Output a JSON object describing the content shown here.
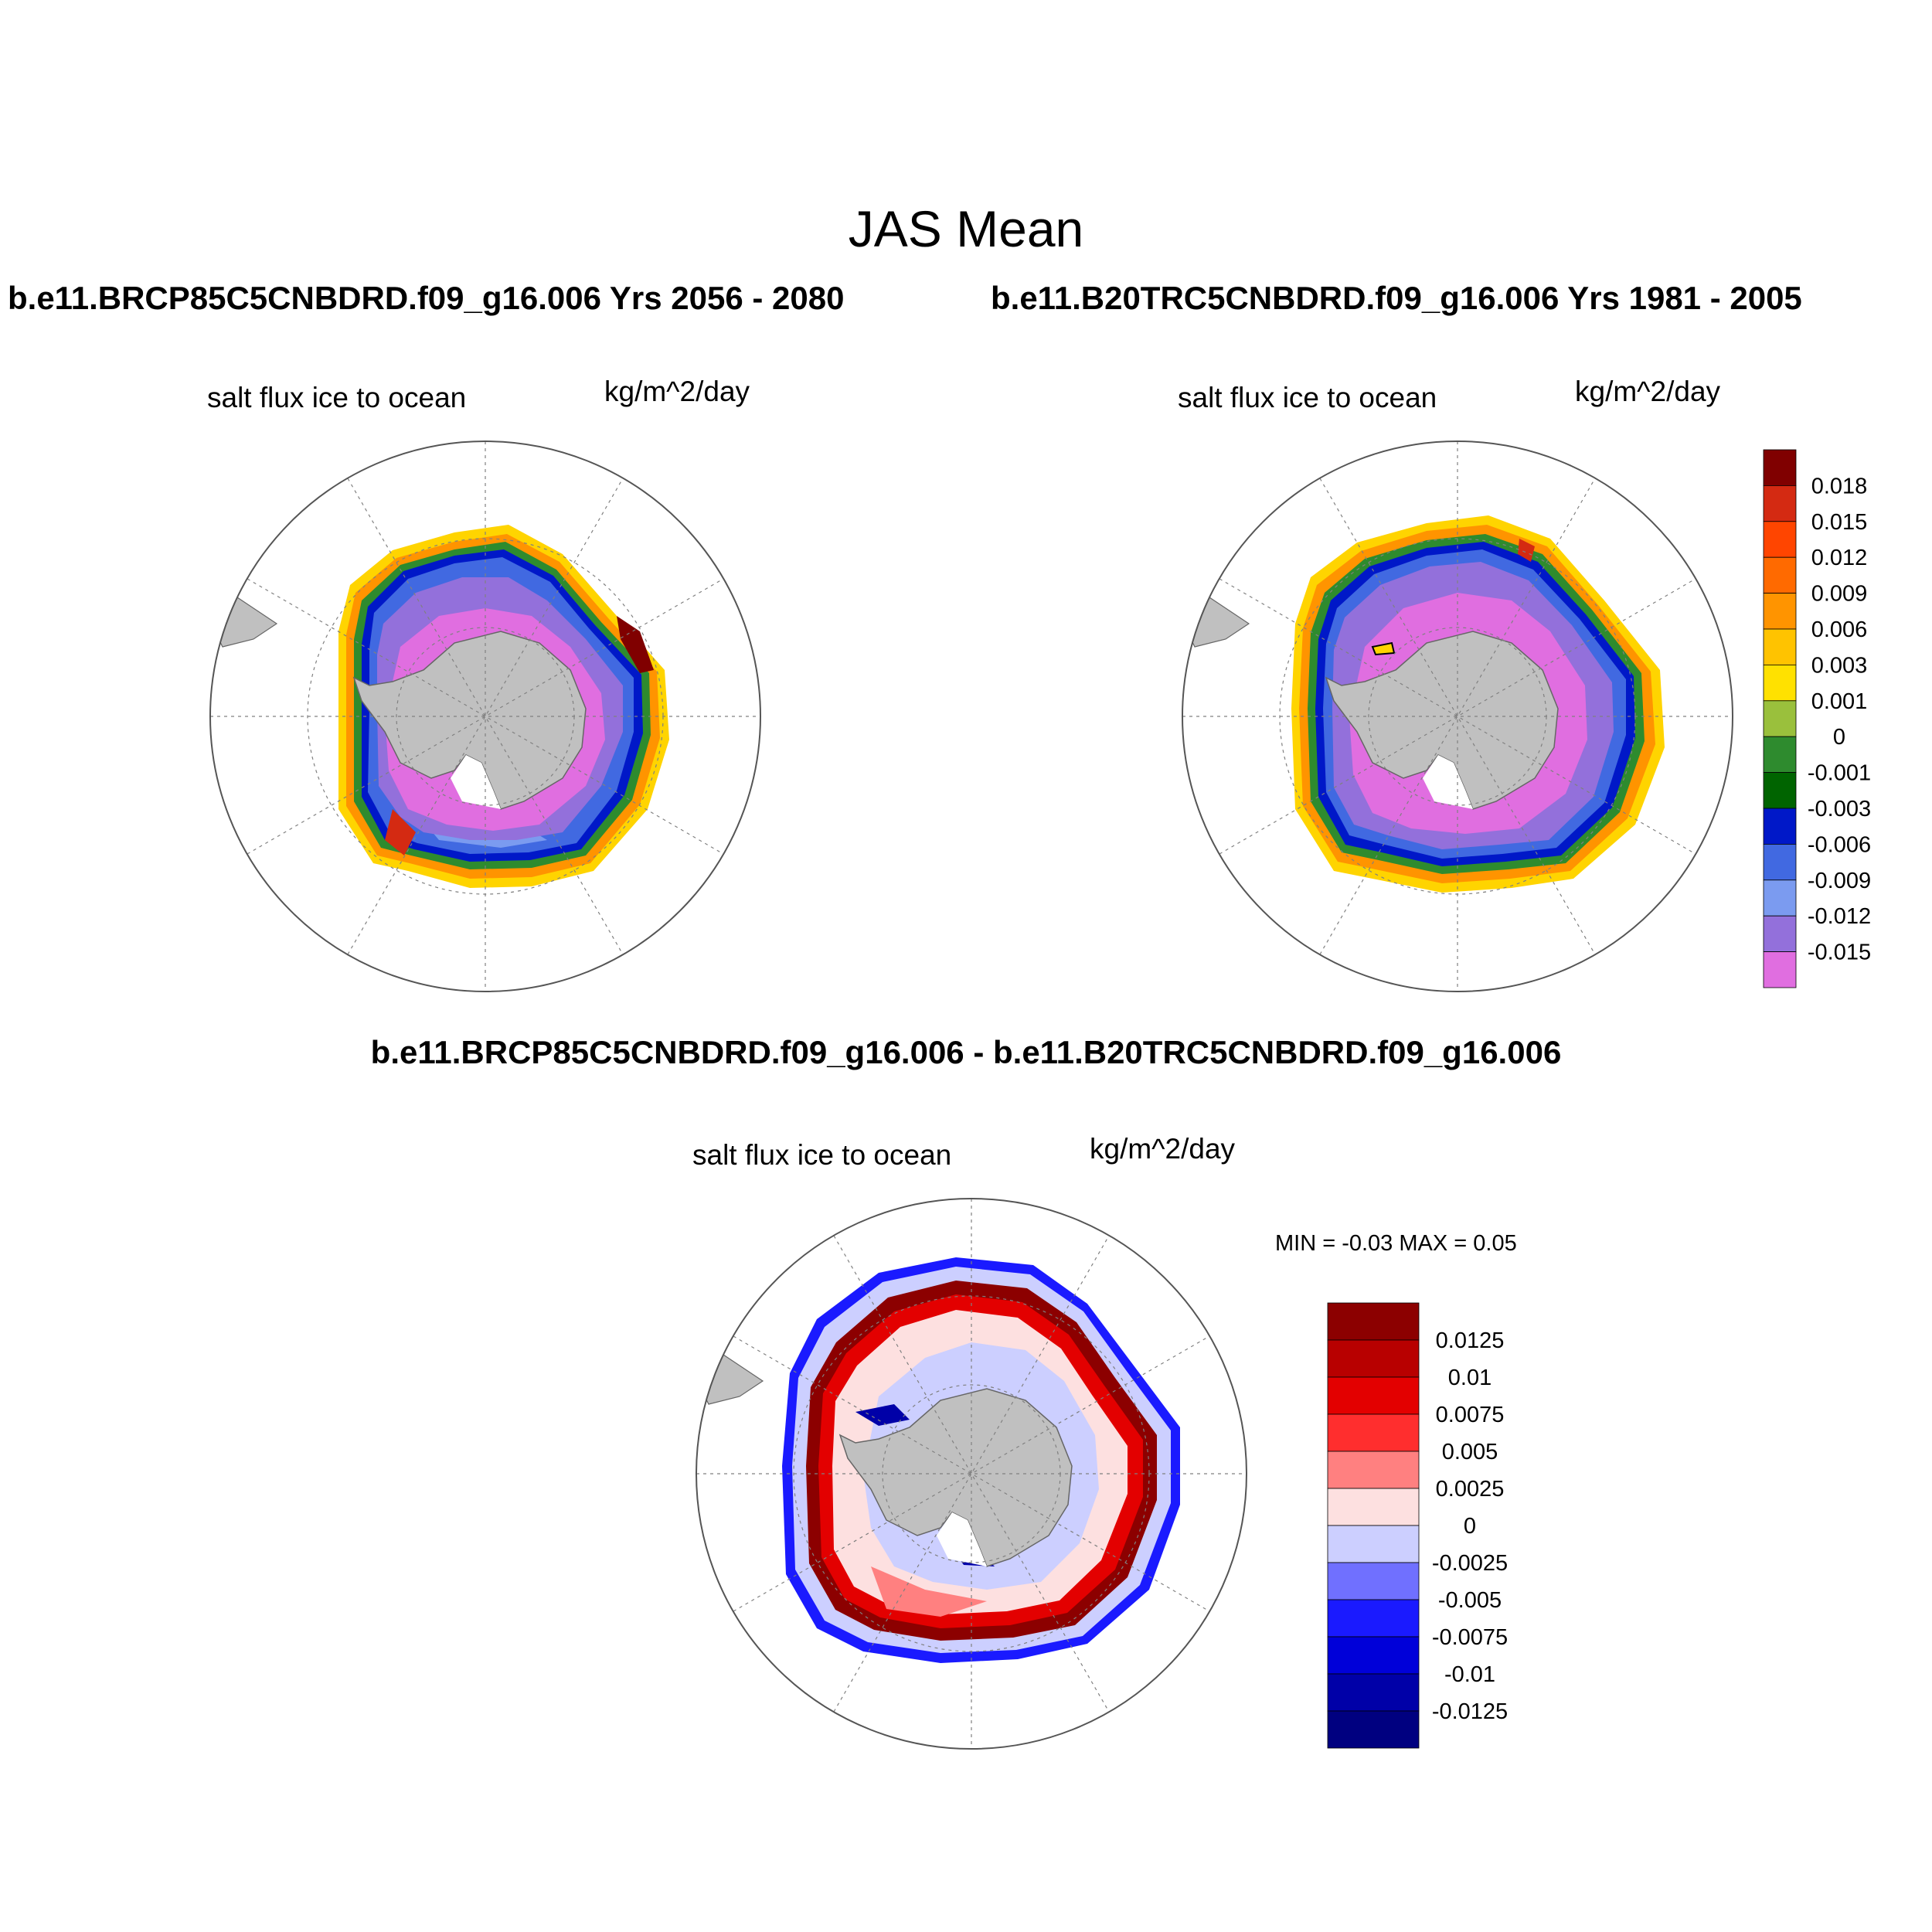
{
  "main_title": "JAS Mean",
  "panels": {
    "top_left": {
      "case_title": "b.e11.BRCP85C5CNBDRD.f09_g16.006  Yrs 2056 - 2080",
      "variable": "salt flux ice to ocean",
      "units": "kg/m^2/day"
    },
    "top_right": {
      "case_title": "b.e11.B20TRC5CNBDRD.f09_g16.006  Yrs 1981 - 2005",
      "variable": "salt flux ice to ocean",
      "units": "kg/m^2/day"
    },
    "bottom": {
      "case_title": "b.e11.BRCP85C5CNBDRD.f09_g16.006 - b.e11.B20TRC5CNBDRD.f09_g16.006",
      "variable": "salt flux ice to ocean",
      "units": "kg/m^2/day",
      "min_max": "MIN =  -0.03 MAX =   0.05"
    }
  },
  "colorbar_main": {
    "labels": [
      "0.018",
      "0.015",
      "0.012",
      "0.009",
      "0.006",
      "0.003",
      "0.001",
      "0",
      "-0.001",
      "-0.003",
      "-0.006",
      "-0.009",
      "-0.012",
      "-0.015"
    ],
    "colors": [
      "#800000",
      "#d42a12",
      "#ff4500",
      "#ff6a00",
      "#ff9400",
      "#ffc300",
      "#ffe100",
      "#9ac03c",
      "#2e8b2e",
      "#006400",
      "#0018c8",
      "#4169e1",
      "#7b9bf0",
      "#9370db",
      "#e06ee0"
    ]
  },
  "colorbar_diff": {
    "labels": [
      "0.0125",
      "0.01",
      "0.0075",
      "0.005",
      "0.0025",
      "0",
      "-0.0025",
      "-0.005",
      "-0.0075",
      "-0.01",
      "-0.0125"
    ],
    "colors": [
      "#8c0000",
      "#b80000",
      "#e30000",
      "#ff2e2e",
      "#ff8080",
      "#fde0e0",
      "#cccfff",
      "#7070ff",
      "#1a1aff",
      "#0000d9",
      "#0000a8",
      "#000080"
    ]
  },
  "map_colors": {
    "land": "#c0c0c0",
    "ice_shelf": "#ffffff",
    "border": "#555555",
    "gridline": "#808080"
  }
}
